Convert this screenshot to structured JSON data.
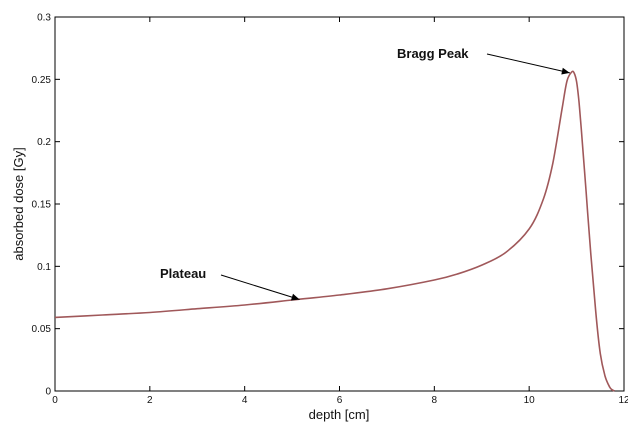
{
  "chart_data": {
    "type": "line",
    "title": "",
    "xlabel": "depth [cm]",
    "ylabel": "absorbed dose [Gy]",
    "xlim": [
      0,
      12
    ],
    "ylim": [
      0,
      0.3
    ],
    "xticks": [
      "0",
      "2",
      "4",
      "6",
      "8",
      "10",
      "12"
    ],
    "yticks": [
      "0",
      "0.05",
      "0.1",
      "0.15",
      "0.2",
      "0.25",
      "0.3"
    ],
    "grid": false,
    "line_color": "#a0585a",
    "series": [
      {
        "x": [
          0,
          1,
          2,
          3,
          4,
          5,
          6,
          7,
          8,
          8.5,
          9,
          9.5,
          10,
          10.3,
          10.5,
          10.7,
          10.8,
          10.9,
          10.95,
          11.0,
          11.05,
          11.1,
          11.2,
          11.3,
          11.4,
          11.5,
          11.6,
          11.7,
          11.75,
          11.8
        ],
        "y": [
          0.059,
          0.061,
          0.063,
          0.066,
          0.069,
          0.073,
          0.077,
          0.082,
          0.089,
          0.094,
          0.101,
          0.111,
          0.13,
          0.154,
          0.183,
          0.228,
          0.249,
          0.256,
          0.255,
          0.248,
          0.232,
          0.21,
          0.16,
          0.11,
          0.065,
          0.03,
          0.012,
          0.003,
          0.001,
          0
        ]
      }
    ],
    "annotations": [
      {
        "text": "Bragg Peak",
        "point": [
          10.9,
          0.256
        ]
      },
      {
        "text": "Plateau",
        "point": [
          5.2,
          0.075
        ]
      }
    ]
  }
}
